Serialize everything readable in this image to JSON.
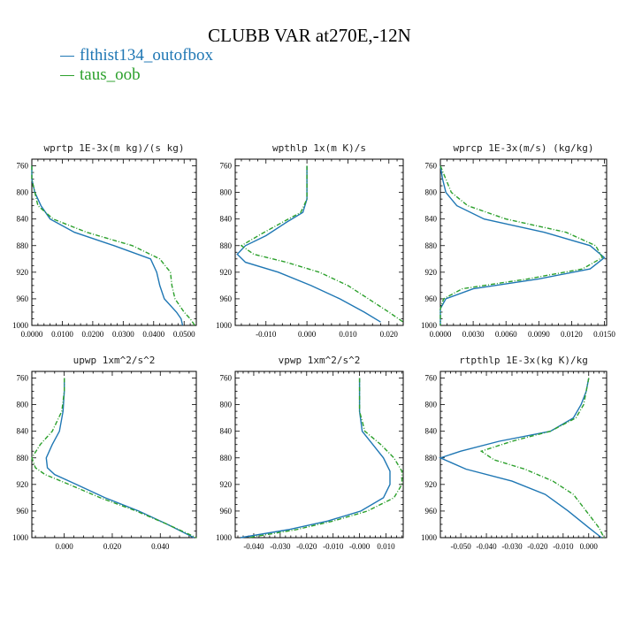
{
  "title": "CLUBB VAR at270E,-12N",
  "legend": [
    {
      "label": "flthist134_outofbox",
      "color": "#1f77b4"
    },
    {
      "label": "taus_oob",
      "color": "#2ca02c"
    }
  ],
  "chart_data": [
    {
      "type": "line",
      "title": "wprtp  1E-3x(m kg)/(s kg)",
      "xlim": [
        0.0,
        0.054
      ],
      "ylim": [
        1000,
        750
      ],
      "xticks": [
        "0.0000",
        "0.0100",
        "0.0200",
        "0.0300",
        "0.0400",
        "0.0500"
      ],
      "xtick_values": [
        0.0,
        0.01,
        0.02,
        0.03,
        0.04,
        0.05
      ],
      "yticks": [
        760,
        800,
        840,
        880,
        920,
        960,
        1000
      ],
      "series": [
        {
          "name": "flthist134_outofbox",
          "x": [
            0.0,
            0.0,
            0.001,
            0.003,
            0.006,
            0.014,
            0.027,
            0.039,
            0.041,
            0.042,
            0.0435,
            0.0475,
            0.049,
            0.0495
          ],
          "y": [
            760,
            780,
            800,
            820,
            840,
            860,
            880,
            900,
            920,
            940,
            960,
            980,
            990,
            1000
          ]
        },
        {
          "name": "taus_oob",
          "x": [
            0.0,
            0.0,
            0.001,
            0.002,
            0.007,
            0.018,
            0.033,
            0.042,
            0.0455,
            0.046,
            0.047,
            0.05,
            0.052,
            0.0535
          ],
          "y": [
            760,
            780,
            800,
            820,
            840,
            860,
            880,
            900,
            920,
            940,
            960,
            980,
            990,
            1000
          ]
        }
      ]
    },
    {
      "type": "line",
      "title": "wpthlp  1x(m K)/s",
      "xlim": [
        -0.0175,
        0.0235
      ],
      "ylim": [
        1000,
        750
      ],
      "xticks": [
        "-0.010",
        "0.000",
        "0.010",
        "0.020"
      ],
      "xtick_values": [
        -0.01,
        0.0,
        0.01,
        0.02
      ],
      "yticks": [
        760,
        800,
        840,
        880,
        920,
        960,
        1000
      ],
      "series": [
        {
          "name": "flthist134_outofbox",
          "x": [
            0.0,
            0.0,
            0.0,
            -0.001,
            -0.005,
            -0.01,
            -0.015,
            -0.017,
            -0.015,
            -0.007,
            0.001,
            0.008,
            0.014,
            0.018
          ],
          "y": [
            760,
            780,
            810,
            830,
            845,
            865,
            880,
            893,
            905,
            920,
            940,
            960,
            980,
            995
          ]
        },
        {
          "name": "taus_oob",
          "x": [
            0.0,
            0.0,
            0.0,
            -0.0015,
            -0.006,
            -0.011,
            -0.016,
            -0.013,
            -0.005,
            0.003,
            0.01,
            0.015,
            0.02,
            0.0235
          ],
          "y": [
            760,
            780,
            810,
            830,
            845,
            862,
            880,
            893,
            905,
            920,
            940,
            960,
            980,
            995
          ]
        }
      ]
    },
    {
      "type": "line",
      "title": "wprcp  1E-3x(m/s) (kg/kg)",
      "xlim": [
        0.0,
        0.0152
      ],
      "ylim": [
        1000,
        750
      ],
      "xticks": [
        "0.0000",
        "0.0030",
        "0.0060",
        "0.0090",
        "0.0120",
        "0.0150"
      ],
      "xtick_values": [
        0.0,
        0.003,
        0.006,
        0.009,
        0.012,
        0.015
      ],
      "yticks": [
        760,
        800,
        840,
        880,
        920,
        960,
        1000
      ],
      "series": [
        {
          "name": "flthist134_outofbox",
          "x": [
            0.0,
            0.0002,
            0.0005,
            0.0015,
            0.004,
            0.0095,
            0.0137,
            0.015,
            0.0137,
            0.009,
            0.003,
            0.0005,
            0.0,
            0.0
          ],
          "y": [
            760,
            780,
            800,
            820,
            840,
            860,
            880,
            898,
            915,
            930,
            945,
            960,
            975,
            1000
          ]
        },
        {
          "name": "taus_oob",
          "x": [
            0.0,
            0.0005,
            0.001,
            0.0025,
            0.006,
            0.0115,
            0.0142,
            0.0148,
            0.013,
            0.008,
            0.002,
            0.0003,
            0.0,
            0.0
          ],
          "y": [
            760,
            780,
            800,
            820,
            840,
            860,
            880,
            898,
            915,
            930,
            945,
            960,
            975,
            1000
          ]
        }
      ]
    },
    {
      "type": "line",
      "title": "upwp  1xm^2/s^2",
      "xlim": [
        -0.0135,
        0.055
      ],
      "ylim": [
        1000,
        750
      ],
      "xticks": [
        "0.000",
        "0.020",
        "0.040"
      ],
      "xtick_values": [
        0.0,
        0.02,
        0.04
      ],
      "yticks": [
        760,
        800,
        840,
        880,
        920,
        960,
        1000
      ],
      "series": [
        {
          "name": "flthist134_outofbox",
          "x": [
            0.0,
            0.0,
            -0.0005,
            -0.002,
            -0.005,
            -0.0075,
            -0.007,
            -0.004,
            0.005,
            0.017,
            0.031,
            0.043,
            0.054
          ],
          "y": [
            760,
            780,
            810,
            840,
            860,
            880,
            895,
            905,
            920,
            940,
            960,
            980,
            1000
          ]
        },
        {
          "name": "taus_oob",
          "x": [
            0.0,
            0.0,
            -0.001,
            -0.005,
            -0.01,
            -0.0135,
            -0.012,
            -0.008,
            0.002,
            0.015,
            0.03,
            0.043,
            0.055
          ],
          "y": [
            760,
            780,
            810,
            840,
            860,
            880,
            895,
            905,
            920,
            940,
            960,
            980,
            1000
          ]
        }
      ]
    },
    {
      "type": "line",
      "title": "vpwp  1xm^2/s^2",
      "xlim": [
        -0.047,
        0.0165
      ],
      "ylim": [
        1000,
        750
      ],
      "xticks": [
        "-0.040",
        "-0.030",
        "-0.020",
        "-0.010",
        "-0.000",
        "0.010"
      ],
      "xtick_values": [
        -0.04,
        -0.03,
        -0.02,
        -0.01,
        0.0,
        0.01
      ],
      "yticks": [
        760,
        800,
        840,
        880,
        920,
        960,
        1000
      ],
      "series": [
        {
          "name": "flthist134_outofbox",
          "x": [
            0.0,
            0.0,
            0.0,
            0.001,
            0.005,
            0.009,
            0.0115,
            0.0115,
            0.009,
            0.0005,
            -0.012,
            -0.027,
            -0.045
          ],
          "y": [
            760,
            780,
            810,
            840,
            860,
            880,
            900,
            920,
            940,
            960,
            975,
            988,
            1000
          ]
        },
        {
          "name": "taus_oob",
          "x": [
            0.0,
            0.0,
            0.0,
            0.002,
            0.008,
            0.013,
            0.016,
            0.016,
            0.013,
            0.003,
            -0.01,
            -0.024,
            -0.042
          ],
          "y": [
            760,
            780,
            810,
            840,
            860,
            880,
            900,
            920,
            940,
            960,
            975,
            988,
            1000
          ]
        }
      ]
    },
    {
      "type": "line",
      "title": "rtpthlp  1E-3x(kg K)/kg",
      "xlim": [
        -0.058,
        0.007
      ],
      "ylim": [
        1000,
        750
      ],
      "xticks": [
        "-0.050",
        "-0.040",
        "-0.030",
        "-0.020",
        "-0.010",
        "0.000"
      ],
      "xtick_values": [
        -0.05,
        -0.04,
        -0.03,
        -0.02,
        -0.01,
        0.0
      ],
      "yticks": [
        760,
        800,
        840,
        880,
        920,
        960,
        1000
      ],
      "series": [
        {
          "name": "flthist134_outofbox",
          "x": [
            0.0,
            -0.001,
            -0.003,
            -0.006,
            -0.015,
            -0.035,
            -0.05,
            -0.058,
            -0.048,
            -0.03,
            -0.017,
            -0.008,
            0.0,
            0.005
          ],
          "y": [
            760,
            780,
            800,
            820,
            840,
            855,
            870,
            880,
            897,
            915,
            935,
            960,
            985,
            1000
          ]
        },
        {
          "name": "taus_oob",
          "x": [
            0.0,
            -0.001,
            -0.002,
            -0.005,
            -0.015,
            -0.03,
            -0.042,
            -0.037,
            -0.025,
            -0.014,
            -0.006,
            -0.001,
            0.004,
            0.006
          ],
          "y": [
            760,
            780,
            800,
            820,
            840,
            855,
            870,
            883,
            897,
            915,
            935,
            960,
            985,
            1000
          ]
        }
      ]
    }
  ]
}
